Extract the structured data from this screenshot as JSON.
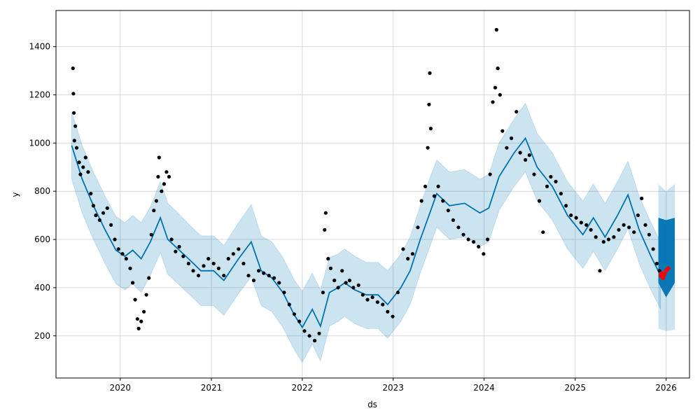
{
  "chart_data": {
    "type": "scatter",
    "title": "",
    "xlabel": "ds",
    "ylabel": "y",
    "xlim": [
      "2019-04-18",
      "2026-04-05"
    ],
    "ylim": [
      25,
      1550
    ],
    "grid": true,
    "x_ticks": [
      "2020",
      "2021",
      "2022",
      "2023",
      "2024",
      "2025",
      "2026"
    ],
    "y_ticks": [
      200,
      400,
      600,
      800,
      1000,
      1200,
      1400
    ],
    "colors": {
      "observed": "#000000",
      "forecast": "#0072b2",
      "interval": "#0072b2",
      "highlight": "#ff0000",
      "grid": "#d9d9d9"
    },
    "forecast_line": [
      [
        "2019-06-20",
        990
      ],
      [
        "2019-08-01",
        850
      ],
      [
        "2019-09-15",
        740
      ],
      [
        "2019-11-01",
        640
      ],
      [
        "2019-12-15",
        555
      ],
      [
        "2020-01-20",
        530
      ],
      [
        "2020-02-20",
        555
      ],
      [
        "2020-03-25",
        520
      ],
      [
        "2020-05-01",
        590
      ],
      [
        "2020-06-10",
        690
      ],
      [
        "2020-07-10",
        600
      ],
      [
        "2020-08-10",
        570
      ],
      [
        "2020-10-01",
        520
      ],
      [
        "2020-11-20",
        470
      ],
      [
        "2021-01-10",
        470
      ],
      [
        "2021-02-20",
        430
      ],
      [
        "2021-04-20",
        520
      ],
      [
        "2021-06-10",
        590
      ],
      [
        "2021-07-20",
        470
      ],
      [
        "2021-09-01",
        440
      ],
      [
        "2021-10-15",
        380
      ],
      [
        "2021-12-01",
        285
      ],
      [
        "2022-01-01",
        235
      ],
      [
        "2022-02-10",
        310
      ],
      [
        "2022-03-15",
        240
      ],
      [
        "2022-04-20",
        380
      ],
      [
        "2022-05-25",
        400
      ],
      [
        "2022-06-20",
        420
      ],
      [
        "2022-08-01",
        390
      ],
      [
        "2022-09-15",
        370
      ],
      [
        "2022-11-01",
        370
      ],
      [
        "2022-12-10",
        330
      ],
      [
        "2023-02-01",
        400
      ],
      [
        "2023-03-10",
        470
      ],
      [
        "2023-04-20",
        600
      ],
      [
        "2023-05-25",
        700
      ],
      [
        "2023-06-25",
        790
      ],
      [
        "2023-08-15",
        740
      ],
      [
        "2023-10-15",
        750
      ],
      [
        "2023-12-15",
        710
      ],
      [
        "2024-01-20",
        730
      ],
      [
        "2024-03-01",
        860
      ],
      [
        "2024-05-01",
        960
      ],
      [
        "2024-06-15",
        1020
      ],
      [
        "2024-08-01",
        900
      ],
      [
        "2024-10-01",
        820
      ],
      [
        "2024-12-01",
        700
      ],
      [
        "2025-02-01",
        620
      ],
      [
        "2025-03-15",
        690
      ],
      [
        "2025-05-01",
        610
      ],
      [
        "2025-06-20",
        700
      ],
      [
        "2025-08-01",
        785
      ],
      [
        "2025-09-15",
        640
      ],
      [
        "2025-11-01",
        530
      ],
      [
        "2025-12-10",
        450
      ]
    ],
    "interval_upper": [
      [
        "2019-06-20",
        1130
      ],
      [
        "2019-08-01",
        990
      ],
      [
        "2019-09-15",
        880
      ],
      [
        "2019-11-01",
        780
      ],
      [
        "2019-12-15",
        695
      ],
      [
        "2020-01-20",
        670
      ],
      [
        "2020-02-20",
        700
      ],
      [
        "2020-03-25",
        670
      ],
      [
        "2020-05-01",
        735
      ],
      [
        "2020-06-10",
        840
      ],
      [
        "2020-07-10",
        750
      ],
      [
        "2020-08-10",
        720
      ],
      [
        "2020-10-01",
        665
      ],
      [
        "2020-11-20",
        615
      ],
      [
        "2021-01-10",
        615
      ],
      [
        "2021-02-20",
        575
      ],
      [
        "2021-04-20",
        670
      ],
      [
        "2021-06-10",
        745
      ],
      [
        "2021-07-20",
        615
      ],
      [
        "2021-09-01",
        590
      ],
      [
        "2021-10-15",
        525
      ],
      [
        "2021-12-01",
        430
      ],
      [
        "2022-01-01",
        385
      ],
      [
        "2022-02-10",
        460
      ],
      [
        "2022-03-15",
        390
      ],
      [
        "2022-04-20",
        525
      ],
      [
        "2022-05-25",
        540
      ],
      [
        "2022-06-20",
        560
      ],
      [
        "2022-08-01",
        530
      ],
      [
        "2022-09-15",
        505
      ],
      [
        "2022-11-01",
        505
      ],
      [
        "2022-12-10",
        470
      ],
      [
        "2023-02-01",
        540
      ],
      [
        "2023-03-10",
        610
      ],
      [
        "2023-04-20",
        740
      ],
      [
        "2023-05-25",
        845
      ],
      [
        "2023-06-25",
        930
      ],
      [
        "2023-08-15",
        880
      ],
      [
        "2023-10-15",
        890
      ],
      [
        "2023-12-15",
        850
      ],
      [
        "2024-01-20",
        870
      ],
      [
        "2024-03-01",
        1000
      ],
      [
        "2024-05-01",
        1100
      ],
      [
        "2024-06-15",
        1165
      ],
      [
        "2024-08-01",
        1040
      ],
      [
        "2024-10-01",
        960
      ],
      [
        "2024-12-01",
        840
      ],
      [
        "2025-02-01",
        760
      ],
      [
        "2025-03-15",
        830
      ],
      [
        "2025-05-01",
        750
      ],
      [
        "2025-06-20",
        840
      ],
      [
        "2025-08-01",
        925
      ],
      [
        "2025-09-15",
        780
      ],
      [
        "2025-11-01",
        670
      ],
      [
        "2025-12-10",
        590
      ]
    ],
    "interval_lower": [
      [
        "2019-06-20",
        850
      ],
      [
        "2019-08-01",
        710
      ],
      [
        "2019-09-15",
        600
      ],
      [
        "2019-11-01",
        500
      ],
      [
        "2019-12-15",
        415
      ],
      [
        "2020-01-20",
        390
      ],
      [
        "2020-02-20",
        415
      ],
      [
        "2020-03-25",
        380
      ],
      [
        "2020-05-01",
        450
      ],
      [
        "2020-06-10",
        545
      ],
      [
        "2020-07-10",
        455
      ],
      [
        "2020-08-10",
        425
      ],
      [
        "2020-10-01",
        375
      ],
      [
        "2020-11-20",
        325
      ],
      [
        "2021-01-10",
        325
      ],
      [
        "2021-02-20",
        285
      ],
      [
        "2021-04-20",
        375
      ],
      [
        "2021-06-10",
        445
      ],
      [
        "2021-07-20",
        325
      ],
      [
        "2021-09-01",
        300
      ],
      [
        "2021-10-15",
        235
      ],
      [
        "2021-12-01",
        140
      ],
      [
        "2022-01-01",
        90
      ],
      [
        "2022-02-10",
        165
      ],
      [
        "2022-03-15",
        95
      ],
      [
        "2022-04-20",
        240
      ],
      [
        "2022-05-25",
        260
      ],
      [
        "2022-06-20",
        280
      ],
      [
        "2022-08-01",
        250
      ],
      [
        "2022-09-15",
        230
      ],
      [
        "2022-11-01",
        230
      ],
      [
        "2022-12-10",
        190
      ],
      [
        "2023-02-01",
        260
      ],
      [
        "2023-03-10",
        330
      ],
      [
        "2023-04-20",
        460
      ],
      [
        "2023-05-25",
        560
      ],
      [
        "2023-06-25",
        650
      ],
      [
        "2023-08-15",
        600
      ],
      [
        "2023-10-15",
        610
      ],
      [
        "2023-12-15",
        570
      ],
      [
        "2024-01-20",
        590
      ],
      [
        "2024-03-01",
        720
      ],
      [
        "2024-05-01",
        820
      ],
      [
        "2024-06-15",
        880
      ],
      [
        "2024-08-01",
        760
      ],
      [
        "2024-10-01",
        680
      ],
      [
        "2024-12-01",
        560
      ],
      [
        "2025-02-01",
        480
      ],
      [
        "2025-03-15",
        550
      ],
      [
        "2025-05-01",
        470
      ],
      [
        "2025-06-20",
        560
      ],
      [
        "2025-08-01",
        645
      ],
      [
        "2025-09-15",
        500
      ],
      [
        "2025-11-01",
        390
      ],
      [
        "2025-12-10",
        310
      ]
    ],
    "forecast_period": {
      "start": "2025-12-01",
      "end": "2026-02-05",
      "upper": [
        [
          "2025-12-01",
          830
        ],
        [
          "2026-01-01",
          800
        ],
        [
          "2026-02-05",
          830
        ]
      ],
      "lower": [
        [
          "2025-12-01",
          230
        ],
        [
          "2026-01-01",
          220
        ],
        [
          "2026-02-05",
          225
        ]
      ],
      "band_upper": [
        [
          "2025-12-01",
          690
        ],
        [
          "2026-01-01",
          680
        ],
        [
          "2026-02-05",
          690
        ]
      ],
      "band_lower": [
        [
          "2025-12-01",
          420
        ],
        [
          "2026-01-01",
          360
        ],
        [
          "2026-02-05",
          420
        ]
      ]
    },
    "observed": [
      [
        "2019-06-25",
        1310
      ],
      [
        "2019-06-27",
        1205
      ],
      [
        "2019-06-29",
        1125
      ],
      [
        "2019-07-05",
        1070
      ],
      [
        "2019-07-01",
        1010
      ],
      [
        "2019-07-10",
        980
      ],
      [
        "2019-07-20",
        920
      ],
      [
        "2019-07-25",
        870
      ],
      [
        "2019-08-05",
        900
      ],
      [
        "2019-08-15",
        940
      ],
      [
        "2019-08-25",
        880
      ],
      [
        "2019-09-05",
        790
      ],
      [
        "2019-09-15",
        740
      ],
      [
        "2019-09-25",
        700
      ],
      [
        "2019-10-10",
        680
      ],
      [
        "2019-10-25",
        710
      ],
      [
        "2019-11-10",
        730
      ],
      [
        "2019-11-25",
        660
      ],
      [
        "2019-12-10",
        600
      ],
      [
        "2019-12-25",
        560
      ],
      [
        "2020-01-10",
        540
      ],
      [
        "2020-01-25",
        520
      ],
      [
        "2020-02-10",
        480
      ],
      [
        "2020-02-20",
        420
      ],
      [
        "2020-03-01",
        350
      ],
      [
        "2020-03-10",
        270
      ],
      [
        "2020-03-15",
        230
      ],
      [
        "2020-03-25",
        260
      ],
      [
        "2020-04-05",
        300
      ],
      [
        "2020-04-15",
        370
      ],
      [
        "2020-04-25",
        440
      ],
      [
        "2020-05-05",
        620
      ],
      [
        "2020-05-15",
        720
      ],
      [
        "2020-05-25",
        760
      ],
      [
        "2020-06-01",
        860
      ],
      [
        "2020-06-05",
        940
      ],
      [
        "2020-06-15",
        800
      ],
      [
        "2020-06-25",
        830
      ],
      [
        "2020-07-05",
        880
      ],
      [
        "2020-07-15",
        860
      ],
      [
        "2020-07-25",
        600
      ],
      [
        "2020-08-10",
        550
      ],
      [
        "2020-08-25",
        570
      ],
      [
        "2020-09-10",
        530
      ],
      [
        "2020-10-01",
        500
      ],
      [
        "2020-10-20",
        470
      ],
      [
        "2020-11-10",
        450
      ],
      [
        "2020-12-01",
        490
      ],
      [
        "2020-12-20",
        520
      ],
      [
        "2021-01-10",
        500
      ],
      [
        "2021-01-30",
        480
      ],
      [
        "2021-02-20",
        450
      ],
      [
        "2021-03-10",
        520
      ],
      [
        "2021-03-30",
        540
      ],
      [
        "2021-04-20",
        560
      ],
      [
        "2021-05-10",
        500
      ],
      [
        "2021-05-30",
        450
      ],
      [
        "2021-06-20",
        430
      ],
      [
        "2021-07-10",
        470
      ],
      [
        "2021-07-30",
        460
      ],
      [
        "2021-08-20",
        450
      ],
      [
        "2021-09-10",
        440
      ],
      [
        "2021-09-30",
        420
      ],
      [
        "2021-10-20",
        380
      ],
      [
        "2021-11-10",
        330
      ],
      [
        "2021-11-30",
        290
      ],
      [
        "2021-12-20",
        260
      ],
      [
        "2022-01-10",
        220
      ],
      [
        "2022-01-30",
        200
      ],
      [
        "2022-02-20",
        180
      ],
      [
        "2022-03-10",
        210
      ],
      [
        "2022-03-25",
        380
      ],
      [
        "2022-04-01",
        640
      ],
      [
        "2022-04-05",
        710
      ],
      [
        "2022-04-15",
        520
      ],
      [
        "2022-04-25",
        480
      ],
      [
        "2022-05-10",
        430
      ],
      [
        "2022-05-25",
        400
      ],
      [
        "2022-06-10",
        470
      ],
      [
        "2022-06-25",
        420
      ],
      [
        "2022-07-10",
        430
      ],
      [
        "2022-07-25",
        400
      ],
      [
        "2022-08-15",
        410
      ],
      [
        "2022-09-01",
        370
      ],
      [
        "2022-09-20",
        350
      ],
      [
        "2022-10-10",
        360
      ],
      [
        "2022-10-30",
        340
      ],
      [
        "2022-11-20",
        330
      ],
      [
        "2022-12-10",
        300
      ],
      [
        "2022-12-30",
        280
      ],
      [
        "2023-01-20",
        380
      ],
      [
        "2023-02-10",
        560
      ],
      [
        "2023-03-01",
        520
      ],
      [
        "2023-03-20",
        540
      ],
      [
        "2023-04-10",
        650
      ],
      [
        "2023-04-25",
        760
      ],
      [
        "2023-05-10",
        820
      ],
      [
        "2023-05-20",
        980
      ],
      [
        "2023-05-25",
        1160
      ],
      [
        "2023-05-28",
        1290
      ],
      [
        "2023-06-01",
        1060
      ],
      [
        "2023-06-15",
        780
      ],
      [
        "2023-07-01",
        820
      ],
      [
        "2023-07-20",
        760
      ],
      [
        "2023-08-10",
        720
      ],
      [
        "2023-08-30",
        680
      ],
      [
        "2023-09-20",
        650
      ],
      [
        "2023-10-10",
        620
      ],
      [
        "2023-10-30",
        600
      ],
      [
        "2023-11-20",
        590
      ],
      [
        "2023-12-10",
        570
      ],
      [
        "2023-12-30",
        540
      ],
      [
        "2024-01-15",
        600
      ],
      [
        "2024-01-25",
        870
      ],
      [
        "2024-02-05",
        1170
      ],
      [
        "2024-02-15",
        1230
      ],
      [
        "2024-02-20",
        1470
      ],
      [
        "2024-02-25",
        1310
      ],
      [
        "2024-03-05",
        1200
      ],
      [
        "2024-03-15",
        1050
      ],
      [
        "2024-04-01",
        980
      ],
      [
        "2024-04-20",
        1020
      ],
      [
        "2024-05-10",
        1130
      ],
      [
        "2024-05-25",
        960
      ],
      [
        "2024-06-15",
        930
      ],
      [
        "2024-07-01",
        950
      ],
      [
        "2024-07-20",
        870
      ],
      [
        "2024-08-10",
        760
      ],
      [
        "2024-08-25",
        630
      ],
      [
        "2024-09-10",
        820
      ],
      [
        "2024-09-25",
        860
      ],
      [
        "2024-10-15",
        840
      ],
      [
        "2024-11-05",
        790
      ],
      [
        "2024-11-25",
        740
      ],
      [
        "2024-12-15",
        700
      ],
      [
        "2025-01-05",
        690
      ],
      [
        "2025-01-25",
        670
      ],
      [
        "2025-02-15",
        660
      ],
      [
        "2025-03-05",
        640
      ],
      [
        "2025-03-25",
        610
      ],
      [
        "2025-04-10",
        470
      ],
      [
        "2025-04-25",
        590
      ],
      [
        "2025-05-15",
        600
      ],
      [
        "2025-06-05",
        610
      ],
      [
        "2025-06-25",
        640
      ],
      [
        "2025-07-15",
        660
      ],
      [
        "2025-08-05",
        650
      ],
      [
        "2025-08-25",
        630
      ],
      [
        "2025-09-10",
        700
      ],
      [
        "2025-09-25",
        770
      ],
      [
        "2025-10-10",
        660
      ],
      [
        "2025-10-25",
        620
      ],
      [
        "2025-11-10",
        560
      ],
      [
        "2025-11-25",
        500
      ],
      [
        "2025-12-05",
        470
      ]
    ],
    "highlight": [
      [
        "2025-12-10",
        450
      ],
      [
        "2025-12-15",
        460
      ],
      [
        "2025-12-20",
        440
      ],
      [
        "2025-12-25",
        455
      ],
      [
        "2026-01-01",
        470
      ],
      [
        "2026-01-05",
        475
      ],
      [
        "2026-01-10",
        480
      ]
    ]
  }
}
